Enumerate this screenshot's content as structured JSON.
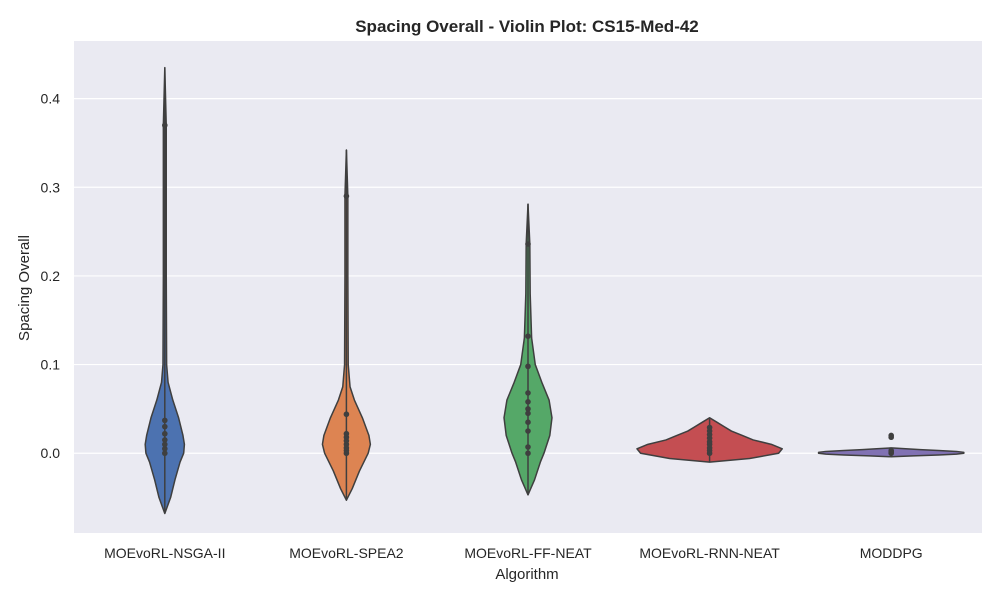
{
  "chart_data": {
    "type": "violin",
    "title": "Spacing Overall - Violin Plot: CS15-Med-42",
    "xlabel": "Algorithm",
    "ylabel": "Spacing Overall",
    "ylim": [
      -0.09,
      0.465
    ],
    "yticks": [
      "0.0",
      "0.1",
      "0.2",
      "0.3",
      "0.4"
    ],
    "ytick_values": [
      0.0,
      0.1,
      0.2,
      0.3,
      0.4
    ],
    "grid": true,
    "background": "#eaeaf2",
    "categories": [
      "MOEvoRL-NSGA-II",
      "MOEvoRL-SPEA2",
      "MOEvoRL-FF-NEAT",
      "MOEvoRL-RNN-NEAT",
      "MODDPG"
    ],
    "series": [
      {
        "color": "#4c72b0",
        "kde_min": -0.068,
        "kde_max": 0.435,
        "profile": [
          [
            -0.068,
            0.0
          ],
          [
            -0.05,
            0.08
          ],
          [
            -0.03,
            0.14
          ],
          [
            -0.01,
            0.21
          ],
          [
            0.0,
            0.26
          ],
          [
            0.01,
            0.27
          ],
          [
            0.02,
            0.25
          ],
          [
            0.04,
            0.19
          ],
          [
            0.06,
            0.11
          ],
          [
            0.08,
            0.045
          ],
          [
            0.1,
            0.025
          ],
          [
            0.2,
            0.02
          ],
          [
            0.37,
            0.02
          ],
          [
            0.435,
            0.0
          ]
        ],
        "points": [
          0.0,
          0.005,
          0.01,
          0.015,
          0.022,
          0.03,
          0.037,
          0.37
        ]
      },
      {
        "color": "#dd8452",
        "kde_min": -0.053,
        "kde_max": 0.342,
        "profile": [
          [
            -0.053,
            0.0
          ],
          [
            -0.04,
            0.08
          ],
          [
            -0.02,
            0.18
          ],
          [
            0.0,
            0.3
          ],
          [
            0.01,
            0.33
          ],
          [
            0.02,
            0.31
          ],
          [
            0.04,
            0.22
          ],
          [
            0.06,
            0.11
          ],
          [
            0.075,
            0.05
          ],
          [
            0.1,
            0.025
          ],
          [
            0.2,
            0.02
          ],
          [
            0.29,
            0.02
          ],
          [
            0.342,
            0.0
          ]
        ],
        "points": [
          0.0,
          0.003,
          0.006,
          0.01,
          0.014,
          0.018,
          0.022,
          0.044,
          0.29
        ]
      },
      {
        "color": "#55a868",
        "kde_min": -0.047,
        "kde_max": 0.281,
        "profile": [
          [
            -0.047,
            0.0
          ],
          [
            -0.03,
            0.09
          ],
          [
            -0.01,
            0.17
          ],
          [
            0.0,
            0.22
          ],
          [
            0.02,
            0.3
          ],
          [
            0.04,
            0.33
          ],
          [
            0.06,
            0.29
          ],
          [
            0.08,
            0.19
          ],
          [
            0.1,
            0.1
          ],
          [
            0.13,
            0.05
          ],
          [
            0.18,
            0.03
          ],
          [
            0.236,
            0.025
          ],
          [
            0.281,
            0.0
          ]
        ],
        "points": [
          0.0,
          0.007,
          0.025,
          0.035,
          0.045,
          0.05,
          0.058,
          0.068,
          0.098,
          0.132,
          0.236
        ]
      },
      {
        "color": "#c44e52",
        "kde_min": -0.01,
        "kde_max": 0.04,
        "profile": [
          [
            -0.01,
            0.0
          ],
          [
            -0.006,
            0.55
          ],
          [
            0.0,
            0.95
          ],
          [
            0.005,
            1.0
          ],
          [
            0.01,
            0.85
          ],
          [
            0.015,
            0.6
          ],
          [
            0.02,
            0.45
          ],
          [
            0.025,
            0.3
          ],
          [
            0.03,
            0.2
          ],
          [
            0.035,
            0.1
          ],
          [
            0.04,
            0.0
          ]
        ],
        "points": [
          0.0,
          0.003,
          0.006,
          0.01,
          0.013,
          0.017,
          0.021,
          0.025,
          0.029
        ]
      },
      {
        "color": "#8172b3",
        "kde_min": -0.004,
        "kde_max": 0.006,
        "profile": [
          [
            -0.004,
            0.0
          ],
          [
            -0.003,
            0.3
          ],
          [
            -0.002,
            0.65
          ],
          [
            -0.001,
            0.9
          ],
          [
            0.0,
            1.0
          ],
          [
            0.001,
            1.0
          ],
          [
            0.002,
            0.9
          ],
          [
            0.003,
            0.65
          ],
          [
            0.004,
            0.4
          ],
          [
            0.005,
            0.2
          ],
          [
            0.006,
            0.0
          ]
        ],
        "points": [
          0.0,
          0.001,
          0.002,
          0.003,
          0.018,
          0.02
        ]
      }
    ]
  }
}
